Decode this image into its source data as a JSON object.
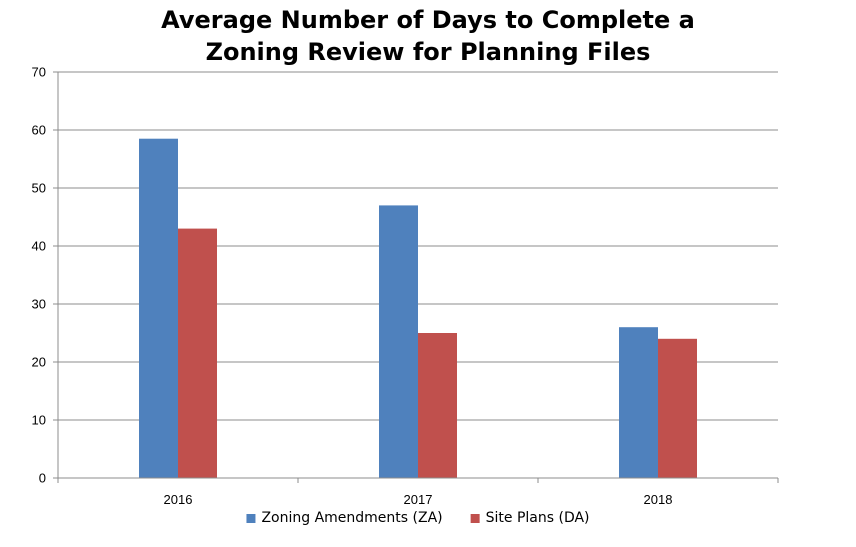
{
  "chart_data": {
    "type": "bar",
    "title_lines": [
      "Average Number of Days to Complete a",
      "Zoning Review for Planning Files"
    ],
    "categories": [
      "2016",
      "2017",
      "2018"
    ],
    "series": [
      {
        "name": "Zoning Amendments (ZA)",
        "values": [
          58.5,
          47,
          26
        ],
        "color": "#4f81bd"
      },
      {
        "name": "Site Plans (DA)",
        "values": [
          43,
          25,
          24
        ],
        "color": "#c0504d"
      }
    ],
    "xlabel": "",
    "ylabel": "",
    "ylim": [
      0,
      70
    ],
    "yticks": [
      "0",
      "10",
      "20",
      "30",
      "40",
      "50",
      "60",
      "70"
    ],
    "grid": true,
    "legend_position": "bottom"
  }
}
